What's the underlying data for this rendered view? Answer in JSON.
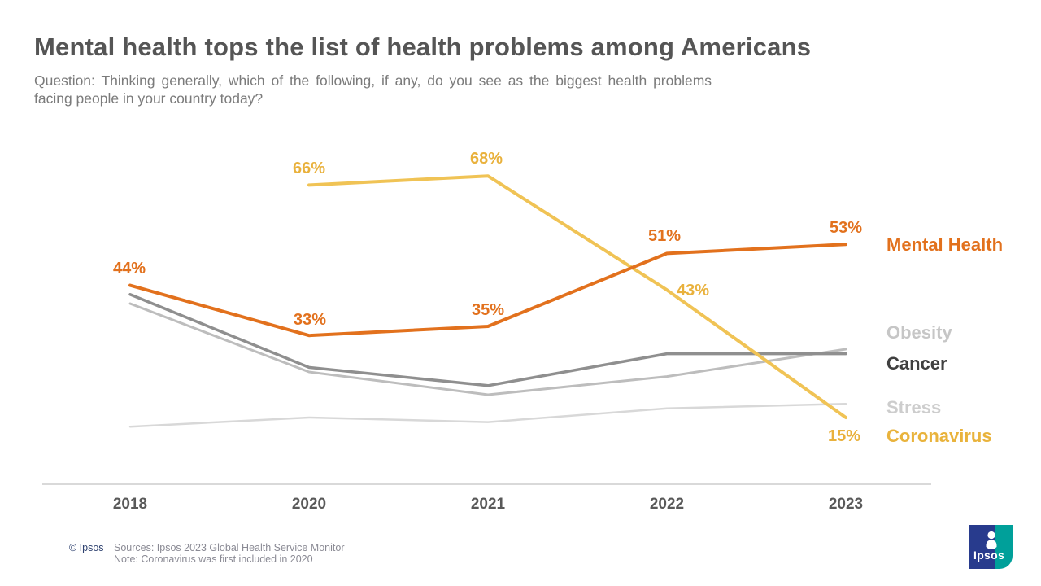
{
  "header": {
    "title": "Mental health tops the list of health problems among Americans",
    "subtitle_lines": [
      "Question: Thinking generally, which of the following, if any, do you see as the biggest health problems",
      "facing people in your country today?"
    ]
  },
  "chart_data": {
    "type": "line",
    "categories": [
      "2018",
      "2020",
      "2021",
      "2022",
      "2023"
    ],
    "unit": "percent",
    "ylim": [
      0,
      80
    ],
    "grid": false,
    "legend_position": "right",
    "series": [
      {
        "name": "Stress",
        "color": "#D8D8D8",
        "stroke_width": 2.5,
        "values": [
          13,
          15,
          14,
          17,
          18
        ]
      },
      {
        "name": "Obesity",
        "color": "#BDBDBD",
        "stroke_width": 3,
        "values": [
          40,
          25,
          20,
          24,
          30
        ]
      },
      {
        "name": "Cancer",
        "color": "#8F8F8F",
        "stroke_width": 3.5,
        "values": [
          42,
          26,
          22,
          29,
          29
        ]
      },
      {
        "name": "Coronavirus",
        "color": "#F0C355",
        "stroke_width": 4,
        "values": [
          null,
          66,
          68,
          43,
          15
        ]
      },
      {
        "name": "Mental Health",
        "color": "#E2711D",
        "stroke_width": 4,
        "values": [
          44,
          33,
          35,
          51,
          53
        ]
      }
    ],
    "annotations": [
      {
        "text": "66%",
        "series": "Coronavirus",
        "category": "2020"
      },
      {
        "text": "68%",
        "series": "Coronavirus",
        "category": "2021"
      },
      {
        "text": "43%",
        "series": "Coronavirus",
        "category": "2022"
      },
      {
        "text": "15%",
        "series": "Coronavirus",
        "category": "2023"
      },
      {
        "text": "44%",
        "series": "Mental Health",
        "category": "2018"
      },
      {
        "text": "33%",
        "series": "Mental Health",
        "category": "2020"
      },
      {
        "text": "35%",
        "series": "Mental Health",
        "category": "2021"
      },
      {
        "text": "51%",
        "series": "Mental Health",
        "category": "2022"
      },
      {
        "text": "53%",
        "series": "Mental Health",
        "category": "2023"
      }
    ]
  },
  "legend": {
    "entries": [
      {
        "label": "Mental Health",
        "color": "#E2711D"
      },
      {
        "label": "Obesity",
        "color": "#C6C6C6"
      },
      {
        "label": "Cancer",
        "color": "#404040"
      },
      {
        "label": "Stress",
        "color": "#CDCDCD"
      },
      {
        "label": "Coronavirus",
        "color": "#E9B33C"
      }
    ]
  },
  "footer": {
    "copyright": "© Ipsos",
    "source": "Sources: Ipsos 2023 Global Health Service Monitor",
    "note": "Note: Coronavirus was first included in 2020"
  },
  "logo": {
    "text": "Ipsos",
    "navy": "#283B8D",
    "teal": "#00A09A"
  }
}
